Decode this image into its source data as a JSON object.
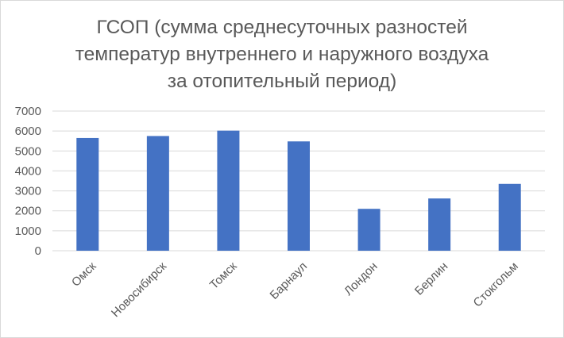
{
  "chart_data": {
    "type": "bar",
    "title_lines": [
      "ГСОП (сумма среднесуточных разностей",
      "температур внутреннего и наружного воздуха",
      "за отопительный период)"
    ],
    "categories": [
      "Омск",
      "Новосибирск",
      "Томск",
      "Барнаул",
      "Лондон",
      "Берлин",
      "Стокгольм"
    ],
    "values": [
      5650,
      5750,
      6020,
      5480,
      2100,
      2620,
      3350
    ],
    "ylim": [
      0,
      7000
    ],
    "yticks": [
      0,
      1000,
      2000,
      3000,
      4000,
      5000,
      6000,
      7000
    ],
    "ytick_labels": [
      "0",
      "1000",
      "2000",
      "3000",
      "4000",
      "5000",
      "6000",
      "7000"
    ],
    "grid": true,
    "legend": "none",
    "colors": {
      "bar": "#4472c4",
      "grid": "#d9d9d9",
      "text": "#595959"
    }
  }
}
